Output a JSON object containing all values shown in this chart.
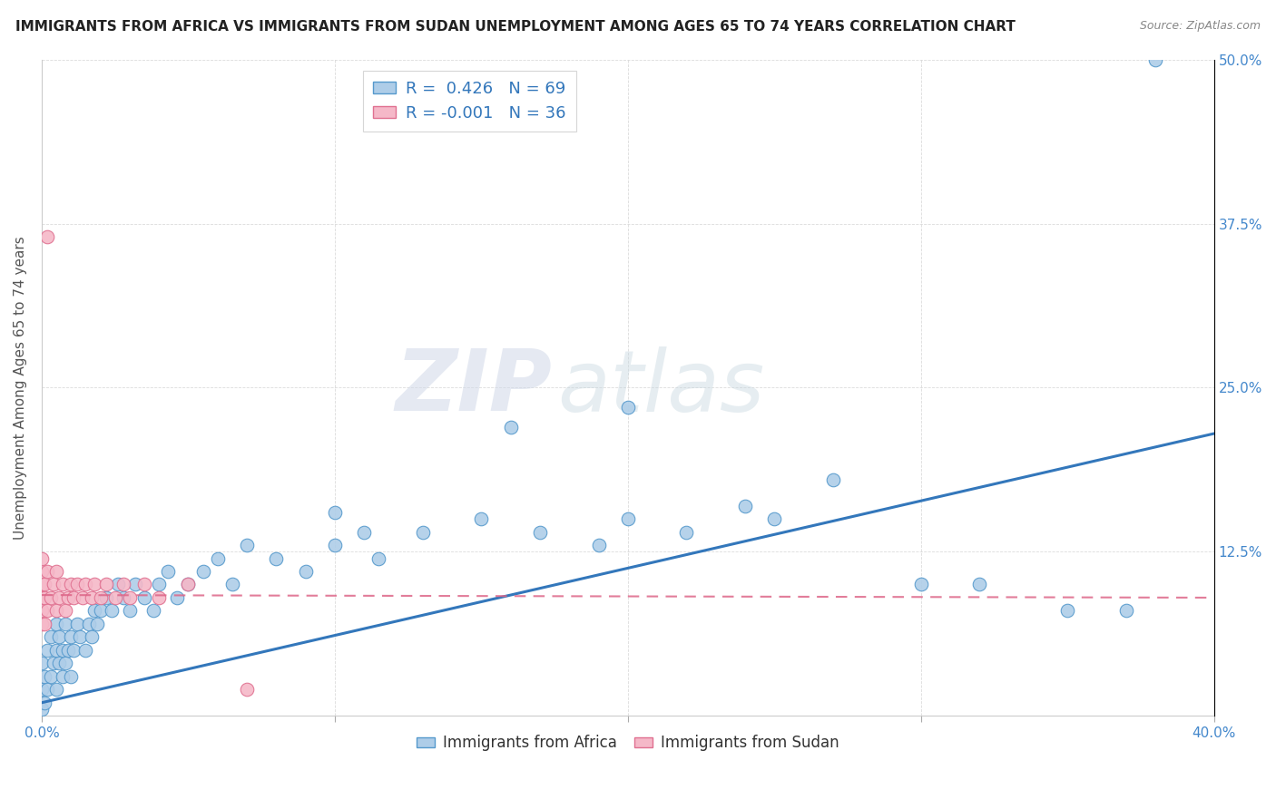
{
  "title": "IMMIGRANTS FROM AFRICA VS IMMIGRANTS FROM SUDAN UNEMPLOYMENT AMONG AGES 65 TO 74 YEARS CORRELATION CHART",
  "source": "Source: ZipAtlas.com",
  "ylabel_label": "Unemployment Among Ages 65 to 74 years",
  "xlim": [
    0.0,
    0.4
  ],
  "ylim": [
    0.0,
    0.5
  ],
  "africa_R": 0.426,
  "africa_N": 69,
  "sudan_R": -0.001,
  "sudan_N": 36,
  "africa_color": "#aecde8",
  "africa_edge_color": "#5599cc",
  "africa_line_color": "#3377bb",
  "sudan_color": "#f5b8c8",
  "sudan_edge_color": "#e07090",
  "sudan_line_color": "#dd6688",
  "watermark_zip": "ZIP",
  "watermark_atlas": "atlas",
  "title_fontsize": 11,
  "source_fontsize": 9,
  "tick_label_color": "#4488cc",
  "axis_label_color": "#555555",
  "grid_color": "#cccccc",
  "legend_text_color": "#3377bb",
  "africa_line_start_x": 0.0,
  "africa_line_start_y": 0.01,
  "africa_line_end_x": 0.4,
  "africa_line_end_y": 0.215,
  "sudan_line_start_x": 0.0,
  "sudan_line_start_y": 0.092,
  "sudan_line_end_x": 0.4,
  "sudan_line_end_y": 0.09,
  "africa_x": [
    0.0,
    0.0,
    0.0,
    0.001,
    0.001,
    0.002,
    0.002,
    0.003,
    0.003,
    0.004,
    0.005,
    0.005,
    0.005,
    0.006,
    0.006,
    0.007,
    0.007,
    0.008,
    0.008,
    0.009,
    0.01,
    0.01,
    0.011,
    0.012,
    0.013,
    0.015,
    0.016,
    0.017,
    0.018,
    0.019,
    0.02,
    0.022,
    0.024,
    0.026,
    0.028,
    0.03,
    0.032,
    0.035,
    0.038,
    0.04,
    0.043,
    0.046,
    0.05,
    0.055,
    0.06,
    0.065,
    0.07,
    0.08,
    0.09,
    0.1,
    0.11,
    0.115,
    0.13,
    0.15,
    0.16,
    0.17,
    0.19,
    0.2,
    0.22,
    0.24,
    0.25,
    0.27,
    0.3,
    0.32,
    0.35,
    0.37,
    0.38,
    0.2,
    0.1
  ],
  "africa_y": [
    0.005,
    0.02,
    0.04,
    0.01,
    0.03,
    0.02,
    0.05,
    0.03,
    0.06,
    0.04,
    0.02,
    0.05,
    0.07,
    0.04,
    0.06,
    0.03,
    0.05,
    0.04,
    0.07,
    0.05,
    0.03,
    0.06,
    0.05,
    0.07,
    0.06,
    0.05,
    0.07,
    0.06,
    0.08,
    0.07,
    0.08,
    0.09,
    0.08,
    0.1,
    0.09,
    0.08,
    0.1,
    0.09,
    0.08,
    0.1,
    0.11,
    0.09,
    0.1,
    0.11,
    0.12,
    0.1,
    0.13,
    0.12,
    0.11,
    0.13,
    0.14,
    0.12,
    0.14,
    0.15,
    0.22,
    0.14,
    0.13,
    0.15,
    0.14,
    0.16,
    0.15,
    0.18,
    0.1,
    0.1,
    0.08,
    0.08,
    0.5,
    0.235,
    0.155
  ],
  "sudan_x": [
    0.0,
    0.0,
    0.0,
    0.0,
    0.0,
    0.0,
    0.001,
    0.001,
    0.001,
    0.002,
    0.002,
    0.003,
    0.004,
    0.005,
    0.005,
    0.006,
    0.007,
    0.008,
    0.009,
    0.01,
    0.011,
    0.012,
    0.014,
    0.015,
    0.017,
    0.018,
    0.02,
    0.022,
    0.025,
    0.028,
    0.03,
    0.035,
    0.04,
    0.05,
    0.07,
    0.002
  ],
  "sudan_y": [
    0.07,
    0.08,
    0.09,
    0.1,
    0.11,
    0.12,
    0.07,
    0.09,
    0.1,
    0.08,
    0.11,
    0.09,
    0.1,
    0.08,
    0.11,
    0.09,
    0.1,
    0.08,
    0.09,
    0.1,
    0.09,
    0.1,
    0.09,
    0.1,
    0.09,
    0.1,
    0.09,
    0.1,
    0.09,
    0.1,
    0.09,
    0.1,
    0.09,
    0.1,
    0.02,
    0.365
  ]
}
